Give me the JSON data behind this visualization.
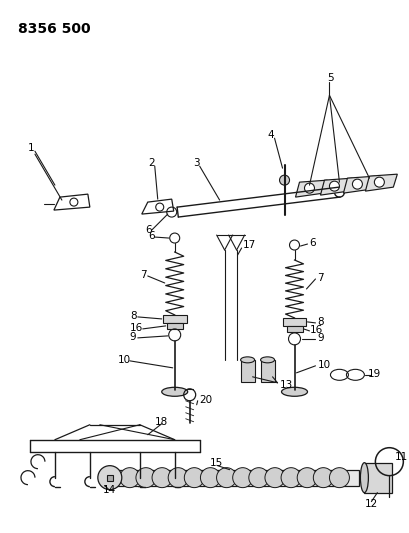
{
  "title": "8356 500",
  "bg_color": "#ffffff",
  "line_color": "#1a1a1a",
  "title_fontsize": 10,
  "label_fontsize": 7.5,
  "fig_w": 4.1,
  "fig_h": 5.33,
  "dpi": 100
}
